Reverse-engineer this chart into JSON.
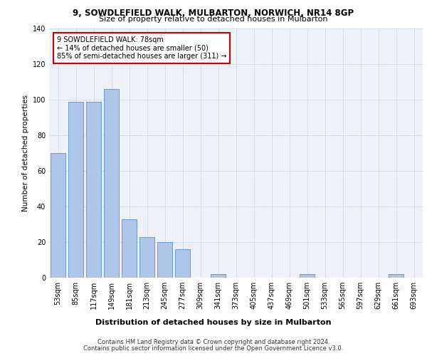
{
  "title1": "9, SOWDLEFIELD WALK, MULBARTON, NORWICH, NR14 8GP",
  "title2": "Size of property relative to detached houses in Mulbarton",
  "xlabel": "Distribution of detached houses by size in Mulbarton",
  "ylabel": "Number of detached properties",
  "categories": [
    "53sqm",
    "85sqm",
    "117sqm",
    "149sqm",
    "181sqm",
    "213sqm",
    "245sqm",
    "277sqm",
    "309sqm",
    "341sqm",
    "373sqm",
    "405sqm",
    "437sqm",
    "469sqm",
    "501sqm",
    "533sqm",
    "565sqm",
    "597sqm",
    "629sqm",
    "661sqm",
    "693sqm"
  ],
  "values": [
    70,
    99,
    99,
    106,
    33,
    23,
    20,
    16,
    0,
    2,
    0,
    0,
    0,
    0,
    2,
    0,
    0,
    0,
    0,
    2,
    0
  ],
  "bar_color": "#aec6e8",
  "bar_edge_color": "#5b8fc9",
  "annotation_text": "9 SOWDLEFIELD WALK: 78sqm\n← 14% of detached houses are smaller (50)\n85% of semi-detached houses are larger (311) →",
  "annotation_box_color": "#ffffff",
  "annotation_box_edge": "#cc0000",
  "grid_color": "#d0d8e8",
  "bg_color": "#eef2f8",
  "ylim": [
    0,
    140
  ],
  "yticks": [
    0,
    20,
    40,
    60,
    80,
    100,
    120,
    140
  ],
  "footer1": "Contains HM Land Registry data © Crown copyright and database right 2024.",
  "footer2": "Contains public sector information licensed under the Open Government Licence v3.0."
}
